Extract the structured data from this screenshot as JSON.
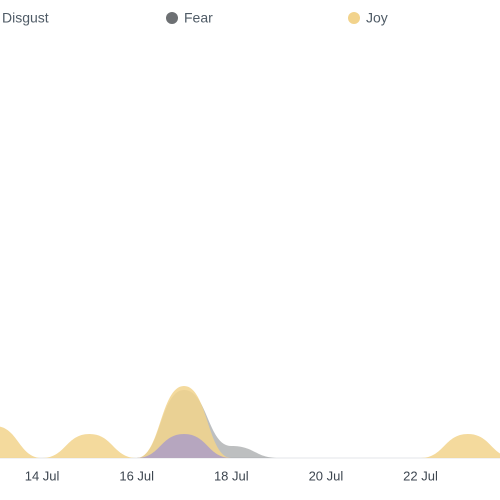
{
  "chart_data": {
    "type": "area",
    "x": [
      12,
      13,
      14,
      15,
      16,
      17,
      18,
      19,
      20,
      21,
      22,
      23,
      24
    ],
    "xlim": [
      13.11,
      23.68
    ],
    "xticks": [
      {
        "value": 14,
        "label": "14 Jul"
      },
      {
        "value": 16,
        "label": "16 Jul"
      },
      {
        "value": 18,
        "label": "18 Jul"
      },
      {
        "value": 20,
        "label": "20 Jul"
      },
      {
        "value": 22,
        "label": "22 Jul"
      }
    ],
    "ylim": [
      0,
      100
    ],
    "series": [
      {
        "name": "Disgust",
        "color": "#a99bc9",
        "values": [
          0,
          0,
          0,
          0,
          0,
          6,
          0,
          0,
          0,
          0,
          0,
          0,
          0
        ]
      },
      {
        "name": "Fear",
        "color": "#6d7073",
        "values": [
          0,
          0,
          0,
          0,
          0,
          17,
          3,
          0,
          0,
          0,
          0,
          0,
          0
        ]
      },
      {
        "name": "Joy",
        "color": "#f2d38c",
        "values": [
          0,
          8,
          0,
          6,
          0,
          18,
          0,
          0,
          0,
          0,
          0,
          6,
          0
        ]
      }
    ]
  }
}
